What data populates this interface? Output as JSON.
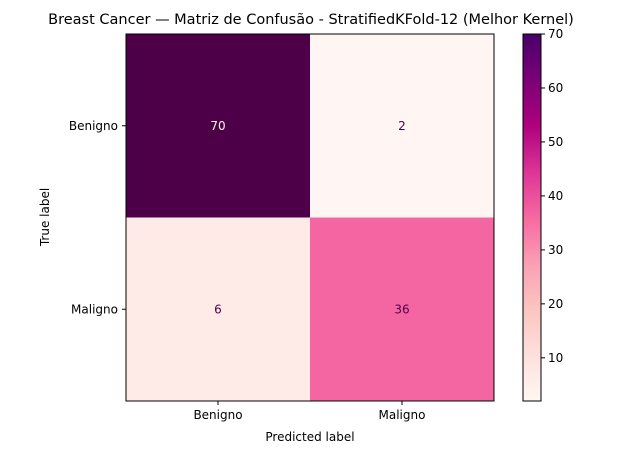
{
  "chart_data": {
    "type": "heatmap",
    "title": "Breast Cancer — Matriz de Confusão - StratifiedKFold-12 (Melhor Kernel)",
    "xlabel": "Predicted label",
    "ylabel": "True label",
    "x_categories": [
      "Benigno",
      "Maligno"
    ],
    "y_categories": [
      "Benigno",
      "Maligno"
    ],
    "values": [
      [
        70,
        2
      ],
      [
        6,
        36
      ]
    ],
    "colormap": "RdPu",
    "colors": {
      "c70": "#4d0048",
      "c36": "#f466a2",
      "c6": "#feeae6",
      "c2": "#fff6f3",
      "dark_text": "#4d0048",
      "light_text": "#fff6f3"
    },
    "colorbar": {
      "range": [
        2,
        70
      ],
      "ticks": [
        10,
        20,
        30,
        40,
        50,
        60,
        70
      ],
      "tick_labels": [
        "10",
        "20",
        "30",
        "40",
        "50",
        "60",
        "70"
      ]
    }
  }
}
